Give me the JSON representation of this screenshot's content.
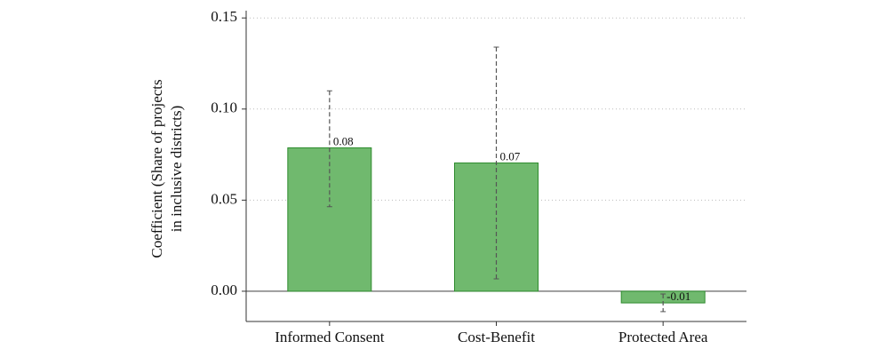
{
  "chart_data": {
    "type": "bar",
    "ylabel": [
      "Coefficient (Share of projects",
      "in inclusive districts)"
    ],
    "categories": [
      "Informed Consent",
      "Cost-Benefit",
      "Protected Area"
    ],
    "values": [
      0.0787,
      0.0704,
      -0.0064
    ],
    "value_labels": [
      "0.08",
      "0.07",
      "-0.01"
    ],
    "ci_low": [
      0.0464,
      0.0068,
      -0.0112
    ],
    "ci_high": [
      0.11,
      0.134,
      -0.0015
    ],
    "color": "#70b96e",
    "ylim": [
      -0.0166,
      0.154
    ],
    "yticks": [
      {
        "value": 0,
        "label": "0.00"
      },
      {
        "value": 0.05,
        "label": "0.05"
      },
      {
        "value": 0.1,
        "label": "0.10"
      },
      {
        "value": 0.15,
        "label": "0.15"
      }
    ],
    "grid": true
  }
}
